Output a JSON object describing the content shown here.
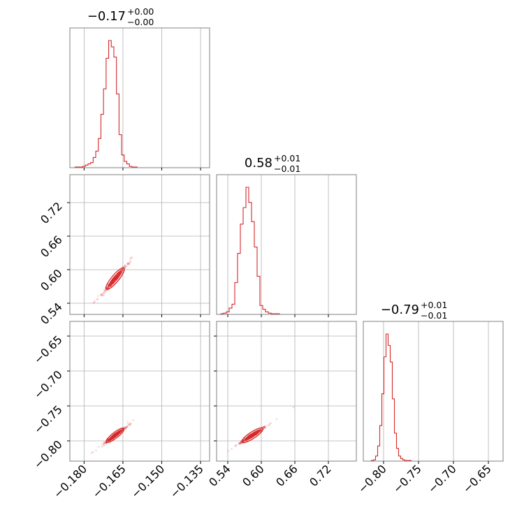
{
  "chart_data": {
    "type": "corner",
    "color": "#d62728",
    "grid": true,
    "parameters": [
      {
        "median": -0.168,
        "sigma": 0.0019,
        "title": {
          "value": "−0.17",
          "upper": "+0.00",
          "lower": "−0.00"
        },
        "range": [
          -0.1855,
          -0.1315
        ],
        "ticks": [
          -0.18,
          -0.165,
          -0.15,
          -0.135
        ],
        "tick_labels": [
          "−0.180",
          "−0.165",
          "−0.150",
          "−0.135"
        ],
        "hist_y_max": 1.0
      },
      {
        "median": 0.584,
        "sigma": 0.0105,
        "title": {
          "value": "0.58",
          "upper": "+0.01",
          "lower": "−0.01"
        },
        "range": [
          0.52,
          0.77
        ],
        "ticks": [
          0.54,
          0.6,
          0.66,
          0.72
        ],
        "tick_labels": [
          "0.54",
          "0.60",
          "0.66",
          "0.72"
        ],
        "hist_y_max": 1.0
      },
      {
        "median": -0.792,
        "sigma": 0.0055,
        "title": {
          "value": "−0.79",
          "upper": "+0.01",
          "lower": "−0.01"
        },
        "range": [
          -0.829,
          -0.629
        ],
        "ticks": [
          -0.8,
          -0.75,
          -0.7,
          -0.65
        ],
        "tick_labels": [
          "−0.80",
          "−0.75",
          "−0.70",
          "−0.65"
        ],
        "hist_y_max": 1.0
      }
    ],
    "histograms": [
      {
        "parameter": 0,
        "bin_edges": [
          -0.1835,
          -0.1825,
          -0.1815,
          -0.1805,
          -0.1795,
          -0.1785,
          -0.1775,
          -0.1765,
          -0.1755,
          -0.1745,
          -0.1735,
          -0.1725,
          -0.1715,
          -0.1705,
          -0.1695,
          -0.1685,
          -0.1675,
          -0.1665,
          -0.1655,
          -0.1645,
          -0.1635,
          -0.1625,
          -0.1615,
          -0.1605,
          -0.1595
        ],
        "counts": [
          0.005,
          0.005,
          0.005,
          0.01,
          0.02,
          0.03,
          0.04,
          0.08,
          0.13,
          0.23,
          0.42,
          0.62,
          0.86,
          1.0,
          0.95,
          0.87,
          0.58,
          0.26,
          0.1,
          0.05,
          0.03,
          0.01,
          0.005,
          0.005
        ]
      },
      {
        "parameter": 1,
        "bin_edges": [
          0.5275,
          0.5325,
          0.5375,
          0.5425,
          0.5475,
          0.5525,
          0.5575,
          0.5625,
          0.5675,
          0.5725,
          0.5775,
          0.5825,
          0.5875,
          0.5925,
          0.5975,
          0.6025,
          0.6075,
          0.6125,
          0.6175,
          0.6225,
          0.6275,
          0.6325
        ],
        "counts": [
          0.005,
          0.01,
          0.02,
          0.05,
          0.08,
          0.25,
          0.48,
          0.71,
          0.84,
          1.0,
          0.88,
          0.73,
          0.53,
          0.3,
          0.07,
          0.04,
          0.02,
          0.01,
          0.005,
          0.005,
          0.005
        ]
      },
      {
        "parameter": 2,
        "bin_edges": [
          -0.8175,
          -0.8145,
          -0.8115,
          -0.8085,
          -0.8055,
          -0.8025,
          -0.7995,
          -0.7965,
          -0.7935,
          -0.7905,
          -0.7875,
          -0.7845,
          -0.7815,
          -0.7785,
          -0.7755,
          -0.7725,
          -0.7695,
          -0.7665,
          -0.7635,
          -0.7605
        ],
        "counts": [
          0.005,
          0.01,
          0.04,
          0.12,
          0.28,
          0.53,
          0.82,
          1.0,
          0.91,
          0.78,
          0.49,
          0.22,
          0.1,
          0.04,
          0.02,
          0.01,
          0.005,
          0.005,
          0.005
        ]
      }
    ],
    "scatter_panels": [
      {
        "x_param": 0,
        "y_param": 1,
        "trend_slope": 4.3
      },
      {
        "x_param": 0,
        "y_param": 2,
        "trend_slope": 2.4
      },
      {
        "x_param": 1,
        "y_param": 2,
        "trend_slope": 0.55
      }
    ]
  }
}
